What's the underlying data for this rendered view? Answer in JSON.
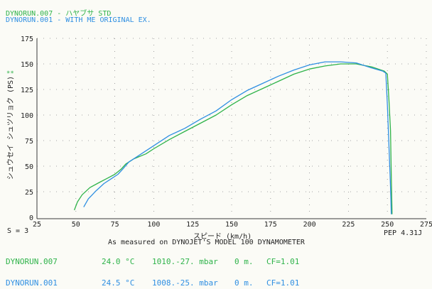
{
  "header": {
    "line1": "DYNORUN.007 - ハヤブサ STD",
    "line2": "DYNORUN.001 - WITH ME ORIGINAL EX."
  },
  "chart_data": {
    "type": "line",
    "ylabel": "シュウセイ シュツリョク (PS)",
    "xlabel": "スピード (km/h)",
    "xlim": [
      25,
      275
    ],
    "ylim": [
      0,
      175
    ],
    "x_ticks": [
      "25",
      "50",
      "75",
      "100",
      "125",
      "150",
      "175",
      "200",
      "225",
      "250",
      "275"
    ],
    "y_ticks": [
      "0",
      "25",
      "50",
      "75",
      "100",
      "125",
      "150",
      "175"
    ],
    "grid": true,
    "series": [
      {
        "name": "DYNORUN.007",
        "color": "#2fb34a",
        "points": [
          [
            49,
            7
          ],
          [
            51,
            15
          ],
          [
            54,
            22
          ],
          [
            59,
            29
          ],
          [
            65,
            34
          ],
          [
            70,
            38
          ],
          [
            75,
            42
          ],
          [
            79,
            47
          ],
          [
            82,
            52
          ],
          [
            87,
            57
          ],
          [
            95,
            62
          ],
          [
            100,
            67
          ],
          [
            110,
            76
          ],
          [
            120,
            84
          ],
          [
            130,
            92
          ],
          [
            140,
            100
          ],
          [
            150,
            110
          ],
          [
            160,
            119
          ],
          [
            170,
            126
          ],
          [
            180,
            133
          ],
          [
            190,
            140
          ],
          [
            200,
            145
          ],
          [
            210,
            148
          ],
          [
            220,
            150
          ],
          [
            230,
            150
          ],
          [
            240,
            147
          ],
          [
            248,
            143
          ],
          [
            250,
            140
          ],
          [
            251,
            115
          ],
          [
            252,
            85
          ],
          [
            252.5,
            40
          ],
          [
            253,
            3
          ]
        ]
      },
      {
        "name": "DYNORUN.001",
        "color": "#2f8fe2",
        "points": [
          [
            55,
            10
          ],
          [
            58,
            18
          ],
          [
            63,
            26
          ],
          [
            68,
            33
          ],
          [
            73,
            38
          ],
          [
            77,
            42
          ],
          [
            80,
            47
          ],
          [
            84,
            54
          ],
          [
            90,
            60
          ],
          [
            100,
            70
          ],
          [
            110,
            80
          ],
          [
            120,
            87
          ],
          [
            130,
            96
          ],
          [
            140,
            104
          ],
          [
            150,
            115
          ],
          [
            160,
            124
          ],
          [
            170,
            131
          ],
          [
            180,
            138
          ],
          [
            190,
            144
          ],
          [
            200,
            149
          ],
          [
            210,
            152
          ],
          [
            220,
            152
          ],
          [
            230,
            151
          ],
          [
            240,
            146
          ],
          [
            247,
            143
          ],
          [
            249,
            141
          ],
          [
            250,
            110
          ],
          [
            251,
            70
          ],
          [
            252,
            30
          ],
          [
            252.5,
            3
          ]
        ]
      }
    ]
  },
  "labels": {
    "s_value": "S = 3",
    "pep": "PEP 4.31J",
    "measured": "As measured on DYNOJET'S MODEL 100 DYNAMOMETER",
    "marker": "**"
  },
  "runs": [
    {
      "name": "DYNORUN.007",
      "temp": "24.0 °C",
      "pressure": "1010.-27. mbar",
      "altitude": "0 m.",
      "cf": "CF=1.01",
      "color": "#2fb34a"
    },
    {
      "name": "DYNORUN.001",
      "temp": "24.5 °C",
      "pressure": "1008.-25. mbar",
      "altitude": "0 m.",
      "cf": "CF=1.01",
      "color": "#2f8fe2"
    }
  ]
}
